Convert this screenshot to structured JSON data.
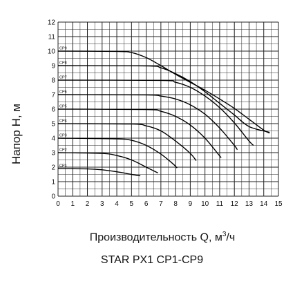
{
  "chart_data": {
    "type": "line",
    "title": "STAR PX1   CP1-CP9",
    "xlabel": "Производительность Q, м",
    "xlabel_sup": "3",
    "xlabel_unit": "/ч",
    "ylabel": "Напор H, м",
    "xlim": [
      0,
      15
    ],
    "ylim": [
      0,
      12
    ],
    "x_ticks": [
      "0",
      "1",
      "2",
      "3",
      "4",
      "5",
      "6",
      "7",
      "8",
      "9",
      "10",
      "11",
      "12",
      "13",
      "14",
      "15"
    ],
    "y_ticks": [
      "0",
      "1",
      "2",
      "3",
      "4",
      "5",
      "6",
      "7",
      "8",
      "9",
      "10",
      "11",
      "12"
    ],
    "grid": true,
    "series": [
      {
        "name": "CP1",
        "points": [
          [
            0,
            1.9
          ],
          [
            2,
            1.88
          ],
          [
            3,
            1.82
          ],
          [
            4,
            1.68
          ],
          [
            5,
            1.5
          ],
          [
            5.6,
            1.4
          ]
        ]
      },
      {
        "name": "CP2",
        "points": [
          [
            0,
            3.0
          ],
          [
            3,
            2.95
          ],
          [
            4,
            2.8
          ],
          [
            5,
            2.5
          ],
          [
            6,
            2.0
          ],
          [
            6.8,
            1.6
          ]
        ]
      },
      {
        "name": "CP3",
        "points": [
          [
            0,
            4.0
          ],
          [
            4,
            3.95
          ],
          [
            5,
            3.85
          ],
          [
            6,
            3.5
          ],
          [
            7,
            2.9
          ],
          [
            7.8,
            2.25
          ],
          [
            8.1,
            1.95
          ]
        ]
      },
      {
        "name": "CP4",
        "points": [
          [
            0,
            5.0
          ],
          [
            5,
            4.97
          ],
          [
            6,
            4.85
          ],
          [
            7,
            4.5
          ],
          [
            8,
            3.8
          ],
          [
            9,
            2.95
          ],
          [
            9.4,
            2.45
          ]
        ]
      },
      {
        "name": "CP5",
        "points": [
          [
            0,
            6.0
          ],
          [
            6,
            5.97
          ],
          [
            7,
            5.85
          ],
          [
            8,
            5.5
          ],
          [
            9,
            4.9
          ],
          [
            10,
            4.0
          ],
          [
            10.9,
            2.9
          ],
          [
            11.1,
            2.65
          ]
        ]
      },
      {
        "name": "CP6",
        "points": [
          [
            0,
            7.0
          ],
          [
            6,
            6.98
          ],
          [
            7,
            6.9
          ],
          [
            8,
            6.7
          ],
          [
            9,
            6.3
          ],
          [
            10,
            5.65
          ],
          [
            11,
            4.7
          ],
          [
            12,
            3.5
          ],
          [
            12.2,
            3.2
          ]
        ]
      },
      {
        "name": "CP7",
        "points": [
          [
            0,
            8.0
          ],
          [
            7,
            7.98
          ],
          [
            8,
            7.85
          ],
          [
            9,
            7.5
          ],
          [
            10,
            6.9
          ],
          [
            11,
            6.1
          ],
          [
            12,
            5.05
          ],
          [
            13,
            3.8
          ],
          [
            13.3,
            3.5
          ]
        ]
      },
      {
        "name": "CP8",
        "points": [
          [
            0,
            9.0
          ],
          [
            6,
            8.98
          ],
          [
            7,
            8.85
          ],
          [
            8,
            8.45
          ],
          [
            9,
            7.9
          ],
          [
            10,
            7.2
          ],
          [
            11,
            6.4
          ],
          [
            12,
            5.6
          ],
          [
            13,
            4.8
          ],
          [
            14.4,
            4.4
          ]
        ]
      },
      {
        "name": "CP9",
        "points": [
          [
            0,
            10.0
          ],
          [
            4,
            9.98
          ],
          [
            5,
            9.9
          ],
          [
            6,
            9.55
          ],
          [
            7,
            9.0
          ],
          [
            8,
            8.4
          ],
          [
            9,
            7.85
          ],
          [
            10,
            7.3
          ],
          [
            11,
            6.7
          ],
          [
            12,
            6.05
          ],
          [
            13,
            5.3
          ],
          [
            14,
            4.55
          ],
          [
            14.4,
            4.35
          ]
        ]
      }
    ]
  }
}
